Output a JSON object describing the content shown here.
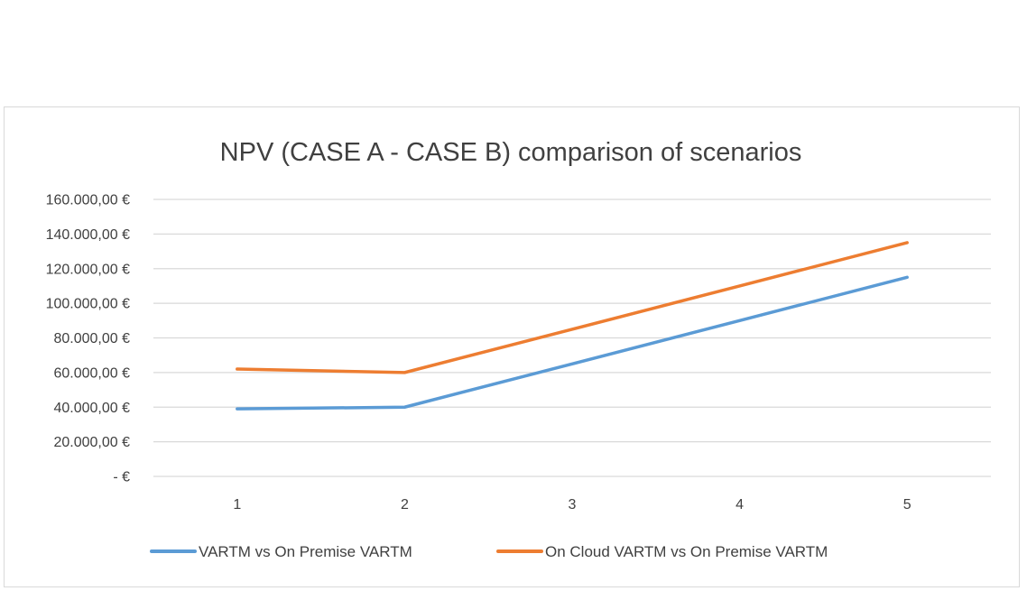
{
  "chart_data": {
    "type": "line",
    "title": "NPV (CASE A - CASE B) comparison of scenarios",
    "xlabel": "",
    "ylabel": "",
    "categories": [
      "1",
      "2",
      "3",
      "4",
      "5"
    ],
    "y_ticks": [
      0,
      20000,
      40000,
      60000,
      80000,
      100000,
      120000,
      140000,
      160000
    ],
    "y_tick_labels": [
      "-  €",
      "20.000,00 €",
      "40.000,00 €",
      "60.000,00 €",
      "80.000,00 €",
      "100.000,00 €",
      "120.000,00 €",
      "140.000,00 €",
      "160.000,00 €"
    ],
    "ylim": [
      0,
      160000
    ],
    "grid": true,
    "legend_position": "bottom",
    "series": [
      {
        "name": "VARTM vs On Premise VARTM",
        "color": "#5b9bd5",
        "values": [
          39000,
          40000,
          65000,
          90000,
          115000
        ]
      },
      {
        "name": "On Cloud VARTM vs On Premise VARTM",
        "color": "#ed7d31",
        "values": [
          62000,
          60000,
          85000,
          110000,
          135000
        ]
      }
    ]
  }
}
